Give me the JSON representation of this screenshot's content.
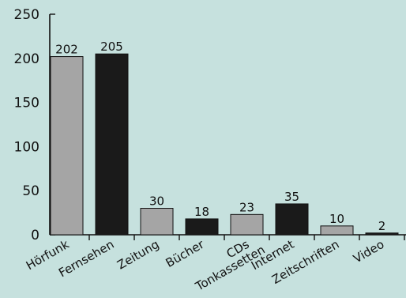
{
  "chart_data": {
    "type": "bar",
    "categories": [
      "Hörfunk",
      "Fernsehen",
      "Zeitung",
      "Bücher",
      "CDs Tonkassetten",
      "Internet",
      "Zeitschriften",
      "Video"
    ],
    "category_labels": [
      [
        "Hörfunk"
      ],
      [
        "Fernsehen"
      ],
      [
        "Zeitung"
      ],
      [
        "Bücher"
      ],
      [
        "CDs",
        "Tonkassetten"
      ],
      [
        "Internet"
      ],
      [
        "Zeitschriften"
      ],
      [
        "Video"
      ]
    ],
    "values": [
      202,
      205,
      30,
      18,
      23,
      35,
      10,
      2
    ],
    "value_labels": [
      "202",
      "205",
      "30",
      "18",
      "23",
      "35",
      "10",
      "2"
    ],
    "bar_colors": [
      "#a5a5a5",
      "#1a1a1a",
      "#a5a5a5",
      "#1a1a1a",
      "#a5a5a5",
      "#1a1a1a",
      "#a5a5a5",
      "#1a1a1a"
    ],
    "ylim": [
      0,
      250
    ],
    "yticks": [
      0,
      50,
      100,
      150,
      200,
      250
    ],
    "grid": false,
    "title": "",
    "xlabel": "",
    "ylabel": ""
  },
  "colors": {
    "background": "#c6e1de",
    "axis": "#111111"
  }
}
